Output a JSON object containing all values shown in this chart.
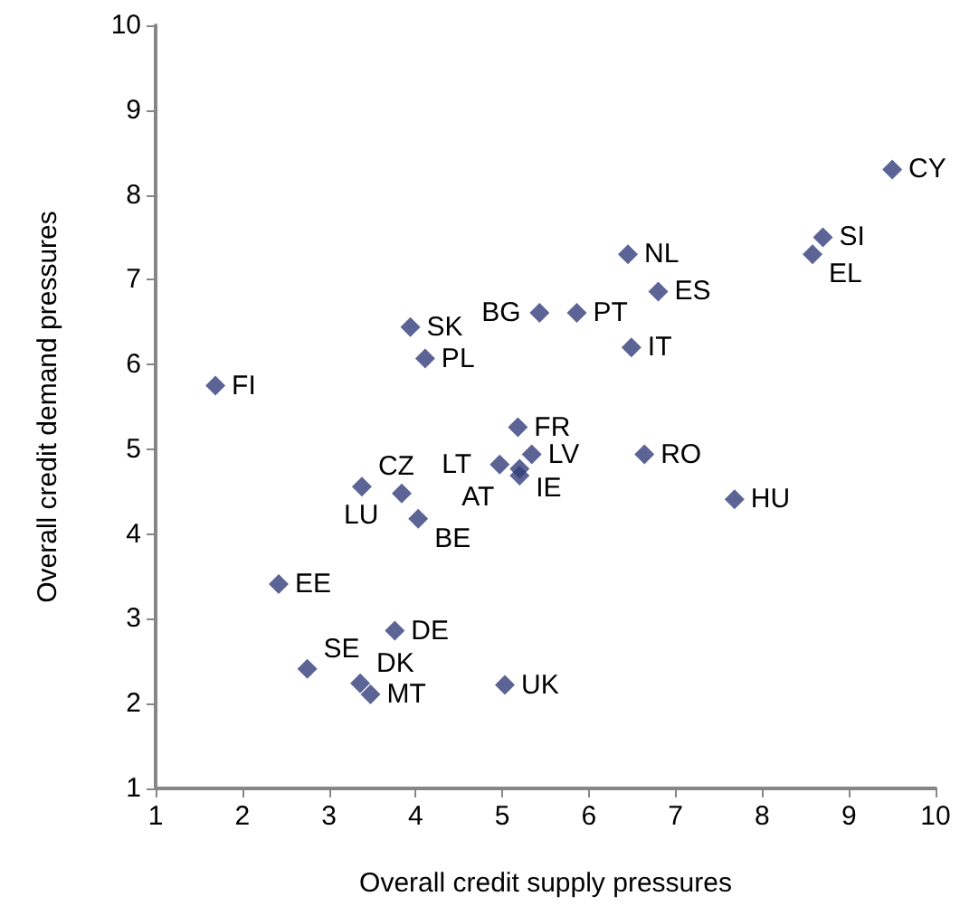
{
  "chart_data": {
    "type": "scatter",
    "xlabel": "Overall credit supply pressures",
    "ylabel": "Overall credit demand pressures",
    "x": [
      9.5,
      8.7,
      8.58,
      6.45,
      6.8,
      5.43,
      5.86,
      3.94,
      4.11,
      6.49,
      1.69,
      5.18,
      5.34,
      6.64,
      4.97,
      5.2,
      5.2,
      3.38,
      3.84,
      4.03,
      7.68,
      2.42,
      3.76,
      2.75,
      3.36,
      3.48,
      5.03
    ],
    "values": [
      8.3,
      7.5,
      7.3,
      7.3,
      6.86,
      6.61,
      6.61,
      6.44,
      6.07,
      6.2,
      5.75,
      5.26,
      4.94,
      4.94,
      4.82,
      4.77,
      4.69,
      4.56,
      4.48,
      4.18,
      4.41,
      3.41,
      2.86,
      2.41,
      2.24,
      2.11,
      2.22
    ],
    "color": "#333d7a",
    "marker": "diamond",
    "xlim": [
      1,
      10
    ],
    "xticks": [
      1,
      2,
      3,
      4,
      5,
      6,
      7,
      8,
      9,
      10
    ],
    "ylim": [
      1,
      10
    ],
    "yticks": [
      1,
      2,
      3,
      4,
      5,
      6,
      7,
      8,
      9,
      10
    ],
    "grid": false,
    "annotations": [
      {
        "text": "CY",
        "x": 9.5,
        "y": 8.3
      },
      {
        "text": "SI",
        "x": 8.7,
        "y": 7.5
      },
      {
        "text": "EL",
        "x": 8.58,
        "y": 7.3
      },
      {
        "text": "NL",
        "x": 6.45,
        "y": 7.3
      },
      {
        "text": "ES",
        "x": 6.8,
        "y": 6.86
      },
      {
        "text": "BG",
        "x": 5.43,
        "y": 6.61
      },
      {
        "text": "PT",
        "x": 5.86,
        "y": 6.61
      },
      {
        "text": "SK",
        "x": 3.94,
        "y": 6.44
      },
      {
        "text": "PL",
        "x": 4.11,
        "y": 6.07
      },
      {
        "text": "IT",
        "x": 6.49,
        "y": 6.2
      },
      {
        "text": "FI",
        "x": 1.69,
        "y": 5.75
      },
      {
        "text": "FR",
        "x": 5.18,
        "y": 5.26
      },
      {
        "text": "LV",
        "x": 5.34,
        "y": 4.94
      },
      {
        "text": "RO",
        "x": 6.64,
        "y": 4.94
      },
      {
        "text": "LT",
        "x": 4.97,
        "y": 4.82
      },
      {
        "text": "IE",
        "x": 5.2,
        "y": 4.77
      },
      {
        "text": "AT",
        "x": 5.2,
        "y": 4.69
      },
      {
        "text": "CZ",
        "x": 3.38,
        "y": 4.56
      },
      {
        "text": "LU",
        "x": 3.84,
        "y": 4.48
      },
      {
        "text": "BE",
        "x": 4.03,
        "y": 4.18
      },
      {
        "text": "HU",
        "x": 7.68,
        "y": 4.41
      },
      {
        "text": "EE",
        "x": 2.42,
        "y": 3.41
      },
      {
        "text": "DE",
        "x": 3.76,
        "y": 2.86
      },
      {
        "text": "SE",
        "x": 2.75,
        "y": 2.41
      },
      {
        "text": "DK",
        "x": 3.36,
        "y": 2.24
      },
      {
        "text": "MT",
        "x": 3.48,
        "y": 2.11
      },
      {
        "text": "UK",
        "x": 5.03,
        "y": 2.22
      }
    ]
  }
}
